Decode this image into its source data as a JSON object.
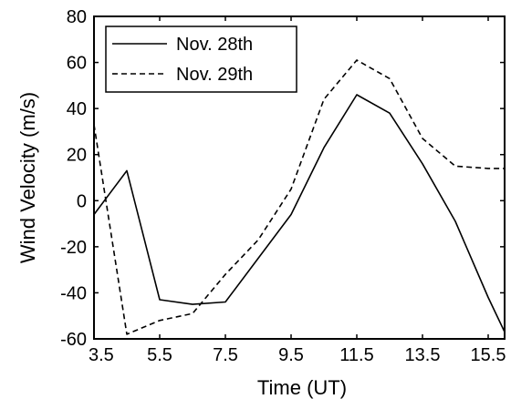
{
  "chart_data": {
    "type": "line",
    "title": "",
    "xlabel": "Time (UT)",
    "ylabel": "Wind Velocity (m/s)",
    "xlim": [
      3.5,
      16
    ],
    "ylim": [
      -60,
      80
    ],
    "xticks": [
      "3.5",
      "5.5",
      "7.5",
      "9.5",
      "11.5",
      "13.5",
      "15.5"
    ],
    "yticks": [
      "80",
      "60",
      "40",
      "20",
      "0",
      "-20",
      "-40",
      "-60"
    ],
    "grid": false,
    "legend_position": "top-left",
    "series": [
      {
        "name": "Nov. 28th",
        "style": "solid",
        "color": "#000000",
        "x": [
          3.5,
          4.5,
          5.5,
          6.5,
          7.5,
          8.5,
          9.5,
          10.5,
          11.5,
          12.5,
          13.5,
          14.5,
          15.5,
          16.0
        ],
        "y": [
          -6,
          13,
          -43,
          -45,
          -44,
          -25,
          -6,
          23,
          46,
          38,
          16,
          -9,
          -42,
          -57
        ]
      },
      {
        "name": "Nov. 29th",
        "style": "dashed",
        "color": "#000000",
        "x": [
          3.5,
          4.5,
          5.5,
          6.5,
          7.5,
          8.5,
          9.5,
          10.5,
          11.5,
          12.5,
          13.5,
          14.5,
          15.5,
          16.0
        ],
        "y": [
          33,
          -58,
          -52,
          -49,
          -32,
          -17,
          5,
          44,
          61,
          53,
          27,
          15,
          14,
          14
        ]
      }
    ]
  }
}
